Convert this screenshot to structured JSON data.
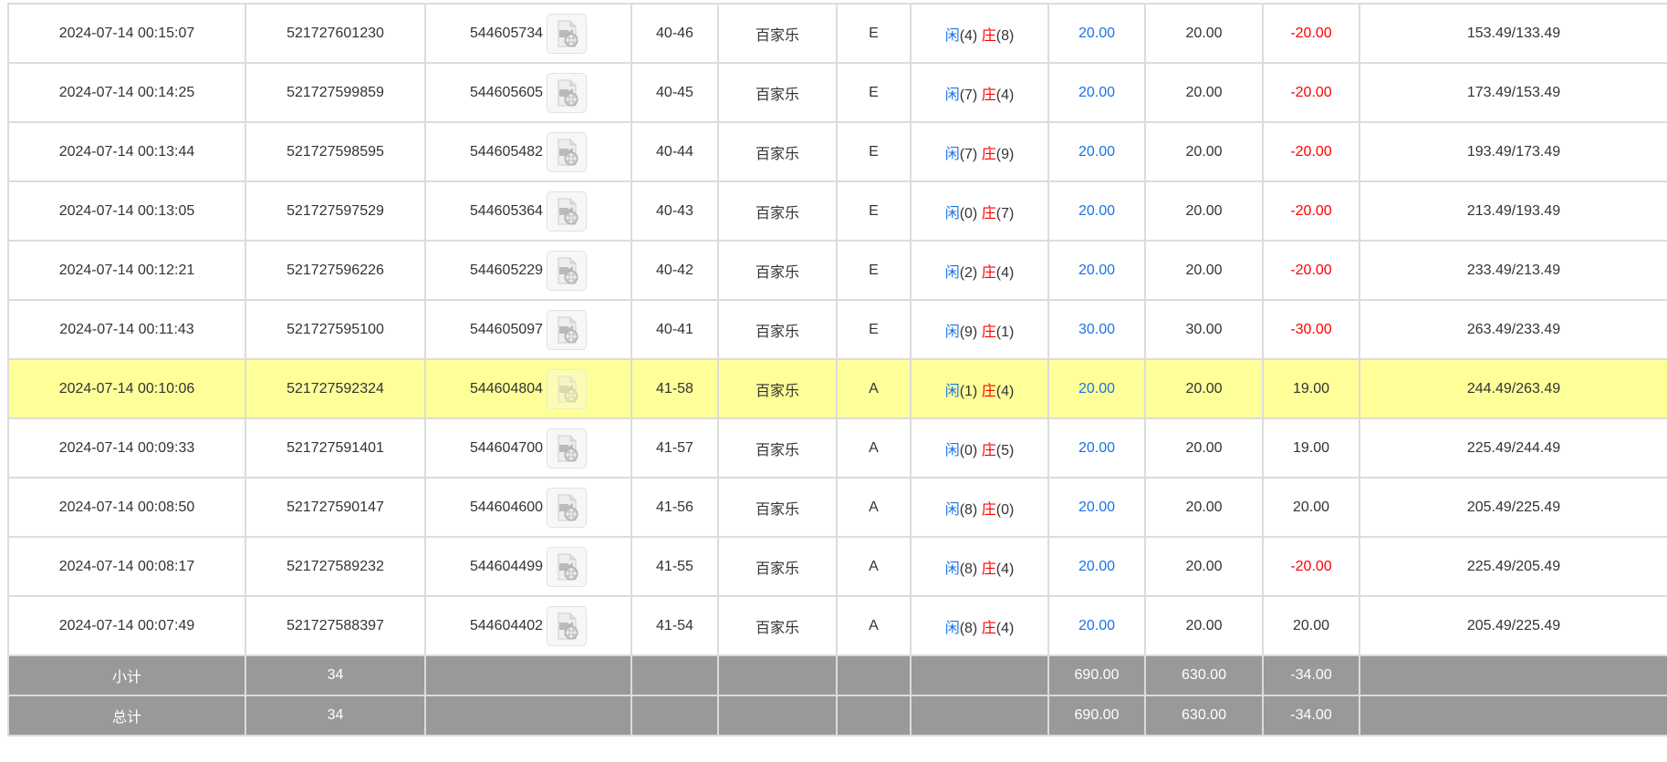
{
  "colors": {
    "player": "#1a73e8",
    "banker": "#ff0000",
    "highlight": "#ffff99",
    "footer": "#999999"
  },
  "rows": [
    {
      "time": "2024-07-14 00:15:07",
      "order": "521727601230",
      "round": "544605734",
      "table": "40-46",
      "game": "百家乐",
      "bet": "E",
      "player": "闲",
      "pv": "(4)",
      "banker": "庄",
      "bv": "(8)",
      "amount": "20.00",
      "valid": "20.00",
      "win": "-20.00",
      "win_neg": true,
      "balance": "153.49/133.49"
    },
    {
      "time": "2024-07-14 00:14:25",
      "order": "521727599859",
      "round": "544605605",
      "table": "40-45",
      "game": "百家乐",
      "bet": "E",
      "player": "闲",
      "pv": "(7)",
      "banker": "庄",
      "bv": "(4)",
      "amount": "20.00",
      "valid": "20.00",
      "win": "-20.00",
      "win_neg": true,
      "balance": "173.49/153.49"
    },
    {
      "time": "2024-07-14 00:13:44",
      "order": "521727598595",
      "round": "544605482",
      "table": "40-44",
      "game": "百家乐",
      "bet": "E",
      "player": "闲",
      "pv": "(7)",
      "banker": "庄",
      "bv": "(9)",
      "amount": "20.00",
      "valid": "20.00",
      "win": "-20.00",
      "win_neg": true,
      "balance": "193.49/173.49"
    },
    {
      "time": "2024-07-14 00:13:05",
      "order": "521727597529",
      "round": "544605364",
      "table": "40-43",
      "game": "百家乐",
      "bet": "E",
      "player": "闲",
      "pv": "(0)",
      "banker": "庄",
      "bv": "(7)",
      "amount": "20.00",
      "valid": "20.00",
      "win": "-20.00",
      "win_neg": true,
      "balance": "213.49/193.49"
    },
    {
      "time": "2024-07-14 00:12:21",
      "order": "521727596226",
      "round": "544605229",
      "table": "40-42",
      "game": "百家乐",
      "bet": "E",
      "player": "闲",
      "pv": "(2)",
      "banker": "庄",
      "bv": "(4)",
      "amount": "20.00",
      "valid": "20.00",
      "win": "-20.00",
      "win_neg": true,
      "balance": "233.49/213.49"
    },
    {
      "time": "2024-07-14 00:11:43",
      "order": "521727595100",
      "round": "544605097",
      "table": "40-41",
      "game": "百家乐",
      "bet": "E",
      "player": "闲",
      "pv": "(9)",
      "banker": "庄",
      "bv": "(1)",
      "amount": "30.00",
      "valid": "30.00",
      "win": "-30.00",
      "win_neg": true,
      "balance": "263.49/233.49"
    },
    {
      "time": "2024-07-14 00:10:06",
      "order": "521727592324",
      "round": "544604804",
      "table": "41-58",
      "game": "百家乐",
      "bet": "A",
      "player": "闲",
      "pv": "(1)",
      "banker": "庄",
      "bv": "(4)",
      "amount": "20.00",
      "valid": "20.00",
      "win": "19.00",
      "win_neg": false,
      "balance": "244.49/263.49",
      "highlighted": true
    },
    {
      "time": "2024-07-14 00:09:33",
      "order": "521727591401",
      "round": "544604700",
      "table": "41-57",
      "game": "百家乐",
      "bet": "A",
      "player": "闲",
      "pv": "(0)",
      "banker": "庄",
      "bv": "(5)",
      "amount": "20.00",
      "valid": "20.00",
      "win": "19.00",
      "win_neg": false,
      "balance": "225.49/244.49"
    },
    {
      "time": "2024-07-14 00:08:50",
      "order": "521727590147",
      "round": "544604600",
      "table": "41-56",
      "game": "百家乐",
      "bet": "A",
      "player": "闲",
      "pv": "(8)",
      "banker": "庄",
      "bv": "(0)",
      "amount": "20.00",
      "valid": "20.00",
      "win": "20.00",
      "win_neg": false,
      "balance": "205.49/225.49"
    },
    {
      "time": "2024-07-14 00:08:17",
      "order": "521727589232",
      "round": "544604499",
      "table": "41-55",
      "game": "百家乐",
      "bet": "A",
      "player": "闲",
      "pv": "(8)",
      "banker": "庄",
      "bv": "(4)",
      "amount": "20.00",
      "valid": "20.00",
      "win": "-20.00",
      "win_neg": true,
      "balance": "225.49/205.49"
    },
    {
      "time": "2024-07-14 00:07:49",
      "order": "521727588397",
      "round": "544604402",
      "table": "41-54",
      "game": "百家乐",
      "bet": "A",
      "player": "闲",
      "pv": "(8)",
      "banker": "庄",
      "bv": "(4)",
      "amount": "20.00",
      "valid": "20.00",
      "win": "20.00",
      "win_neg": false,
      "balance": "205.49/225.49"
    }
  ],
  "footer": [
    {
      "label": "小计",
      "count": "34",
      "amount": "690.00",
      "valid": "630.00",
      "win": "-34.00"
    },
    {
      "label": "总计",
      "count": "34",
      "amount": "690.00",
      "valid": "630.00",
      "win": "-34.00"
    }
  ],
  "icons": {
    "replay": "video-file-icon"
  }
}
